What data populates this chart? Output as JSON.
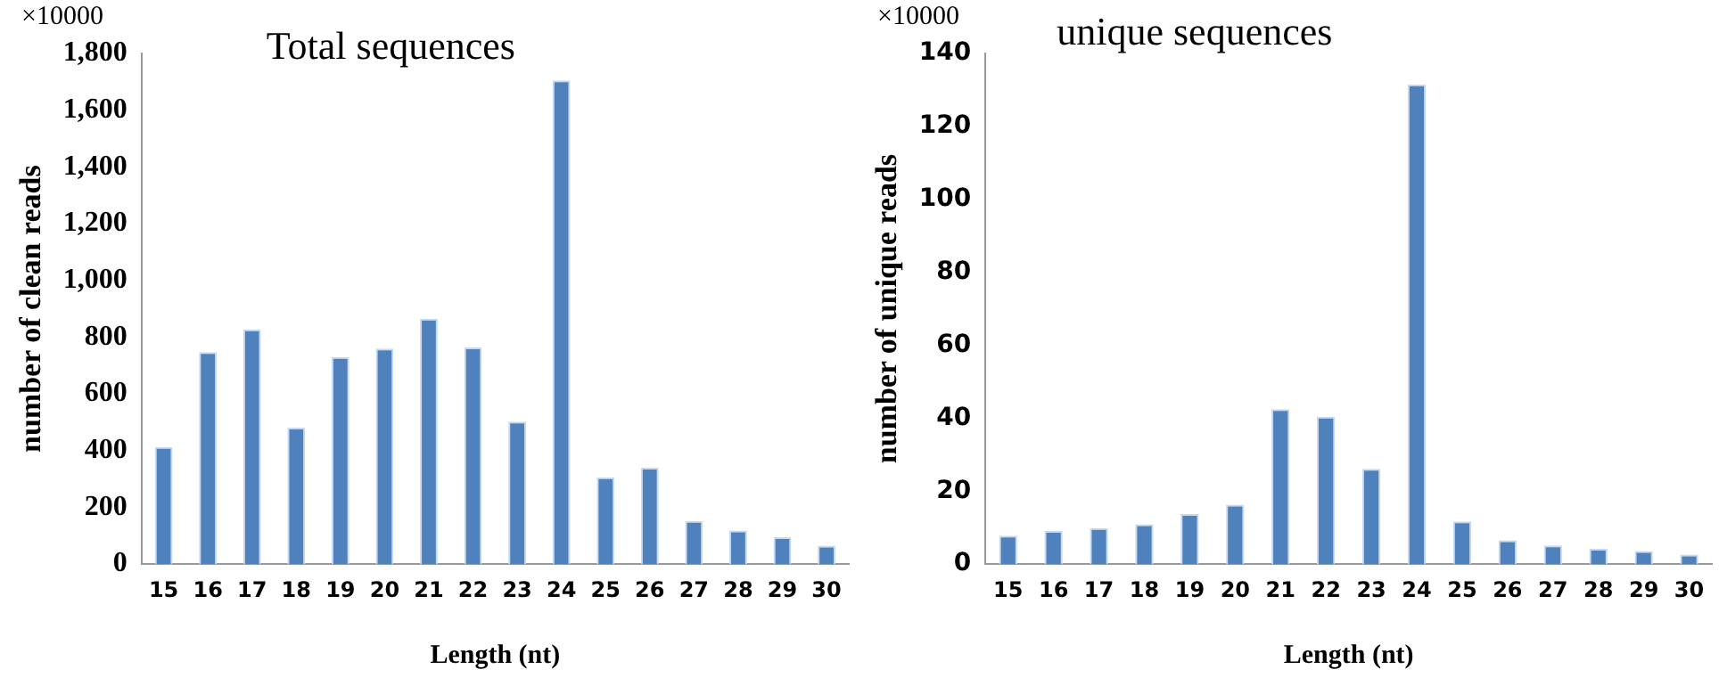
{
  "chart_data": [
    {
      "type": "bar",
      "title": "Total sequences",
      "xlabel": "Length (nt)",
      "ylabel": "number of clean reads",
      "annotations": [
        "×10000"
      ],
      "categories": [
        "15",
        "16",
        "17",
        "18",
        "19",
        "20",
        "21",
        "22",
        "23",
        "24",
        "25",
        "26",
        "27",
        "28",
        "29",
        "30"
      ],
      "values": [
        413,
        747,
        827,
        481,
        730,
        760,
        865,
        764,
        502,
        1705,
        306,
        340,
        152,
        118,
        95,
        65
      ],
      "color": "#4f81bd",
      "ylim": [
        0,
        1800
      ],
      "yticks": [
        {
          "value": 0,
          "label": "0"
        },
        {
          "value": 200,
          "label": "200"
        },
        {
          "value": 400,
          "label": "400"
        },
        {
          "value": 600,
          "label": "600"
        },
        {
          "value": 800,
          "label": "800"
        },
        {
          "value": 1000,
          "label": "1,000"
        },
        {
          "value": 1200,
          "label": "1,200"
        },
        {
          "value": 1400,
          "label": "1,400"
        },
        {
          "value": 1600,
          "label": "1,600"
        },
        {
          "value": 1800,
          "label": "1,800"
        }
      ],
      "grid": false
    },
    {
      "type": "bar",
      "title": "unique sequences",
      "xlabel": "Length (nt)",
      "ylabel": "number of unique reads",
      "annotations": [
        "×10000"
      ],
      "categories": [
        "15",
        "16",
        "17",
        "18",
        "19",
        "20",
        "21",
        "22",
        "23",
        "24",
        "25",
        "26",
        "27",
        "28",
        "29",
        "30"
      ],
      "values": [
        7.8,
        9.1,
        9.9,
        10.9,
        13.7,
        16.3,
        42.5,
        40.4,
        26.1,
        131.5,
        11.7,
        6.5,
        5.1,
        4.2,
        3.6,
        2.6
      ],
      "color": "#4f81bd",
      "ylim": [
        0,
        140
      ],
      "yticks": [
        0,
        20,
        40,
        60,
        80,
        100,
        120,
        140
      ],
      "grid": false
    }
  ]
}
